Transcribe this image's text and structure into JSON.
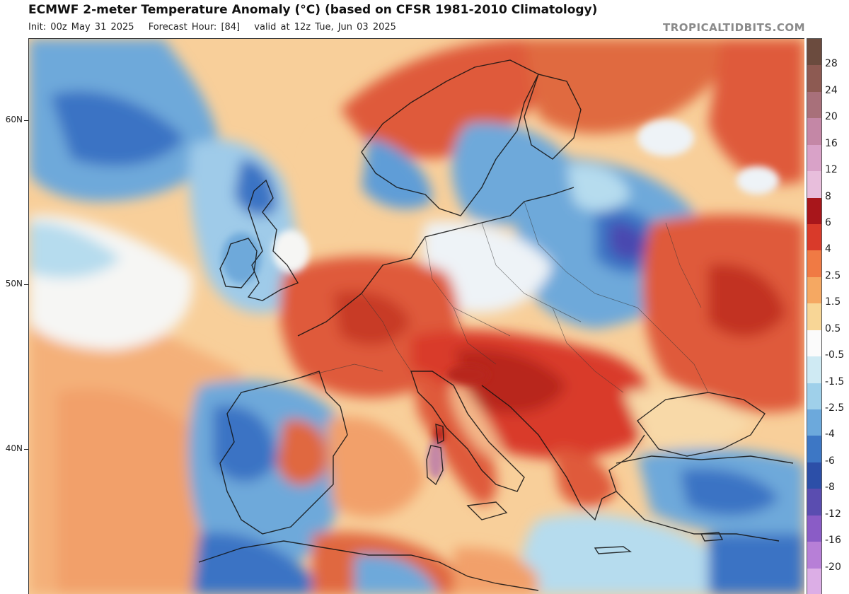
{
  "header": {
    "title": "ECMWF 2-meter Temperature Anomaly (°C) (based on CFSR 1981-2010 Climatology)",
    "init": "Init: 00z May 31 2025",
    "forecast_hour": "Forecast Hour: [84]",
    "valid": "valid at 12z Tue, Jun 03 2025",
    "brand": "TROPICALTIDBITS.COM"
  },
  "map": {
    "lat_labels": [
      "60N",
      "50N",
      "40N"
    ],
    "colors": {
      "strong_warm": "#b8261c",
      "warm": "#df5a3a",
      "mild_warm": "#f2a06a",
      "slight_warm": "#f8cf9a",
      "neutral": "#f6f6f4",
      "slight_cool": "#b6dcee",
      "cool": "#6ea9da",
      "cold": "#3b73c4",
      "very_cold": "#4a4ab0"
    }
  },
  "colorbar": {
    "labels": [
      "28",
      "24",
      "20",
      "16",
      "12",
      "8",
      "6",
      "4",
      "2.5",
      "1.5",
      "0.5",
      "-0.5",
      "-1.5",
      "-2.5",
      "-4",
      "-6",
      "-8",
      "-12",
      "-16",
      "-20"
    ],
    "colors": [
      "#6b4b3e",
      "#8d5a52",
      "#a8707a",
      "#c487a6",
      "#d9a2c8",
      "#e8bedc",
      "#a8161b",
      "#d93a2a",
      "#f07a44",
      "#f5a862",
      "#f8d696",
      "#fbfbfb",
      "#cfeaf3",
      "#9fd0ea",
      "#6ca9dc",
      "#3d77c5",
      "#2c4fa8",
      "#5a4db0",
      "#8a5cc6",
      "#b77fd7",
      "#dcaee6"
    ]
  }
}
